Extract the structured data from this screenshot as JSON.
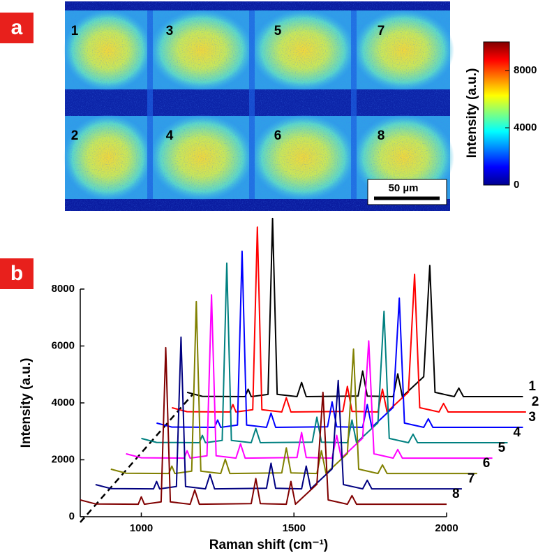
{
  "chart_data": [
    {
      "type": "heatmap",
      "panel_label": "a",
      "spot_labels": [
        "1",
        "2",
        "3",
        "4",
        "5",
        "6",
        "7",
        "8"
      ],
      "scale_bar": "50 µm",
      "colorbar_label": "Intensity (a.u.)",
      "colormap": "jet",
      "clim": [
        0,
        10000
      ],
      "cticks": [
        0,
        4000,
        8000
      ]
    },
    {
      "type": "line",
      "panel_label": "b",
      "x_label": "Raman shift (cm⁻¹)",
      "y_label": "Intensity (a.u.)",
      "xlim": [
        800,
        2000
      ],
      "xticks": [
        1000,
        1500,
        2000
      ],
      "ylim": [
        0,
        8000
      ],
      "yticks": [
        0,
        2000,
        4000,
        6000,
        8000
      ],
      "series": [
        {
          "name": "1",
          "color": "#000000",
          "x": [
            1150,
            1200,
            1340,
            1350,
            1360,
            1415,
            1430,
            1445,
            1510,
            1525,
            1540,
            1710,
            1725,
            1740,
            1825,
            1840,
            1855,
            1925,
            1945,
            1962,
            2025,
            2040,
            2055,
            2250
          ],
          "values": [
            4370,
            4230,
            4220,
            4480,
            4220,
            4300,
            10480,
            4300,
            4220,
            4720,
            4220,
            4240,
            5120,
            4240,
            4220,
            5020,
            4220,
            4920,
            8830,
            4370,
            4220,
            4520,
            4220,
            4220
          ]
        },
        {
          "name": "2",
          "color": "#ff0000",
          "x": [
            1100,
            1150,
            1290,
            1300,
            1310,
            1365,
            1380,
            1395,
            1460,
            1475,
            1490,
            1660,
            1675,
            1690,
            1775,
            1790,
            1805,
            1875,
            1895,
            1912,
            1975,
            1990,
            2005,
            2260
          ],
          "values": [
            3830,
            3690,
            3680,
            3940,
            3680,
            3760,
            10180,
            3760,
            3680,
            4180,
            3680,
            3700,
            4580,
            3700,
            3680,
            4480,
            3680,
            4380,
            8520,
            3830,
            3680,
            3980,
            3680,
            3680
          ]
        },
        {
          "name": "3",
          "color": "#0000ff",
          "x": [
            1050,
            1100,
            1240,
            1250,
            1260,
            1315,
            1330,
            1345,
            1410,
            1425,
            1440,
            1610,
            1625,
            1640,
            1725,
            1740,
            1755,
            1825,
            1845,
            1862,
            1925,
            1940,
            1955,
            2250
          ],
          "values": [
            3290,
            3150,
            3140,
            3400,
            3140,
            3220,
            9330,
            3220,
            3140,
            3640,
            3140,
            3160,
            4040,
            3160,
            3140,
            3940,
            3140,
            3840,
            7680,
            3290,
            3140,
            3440,
            3140,
            3140
          ]
        },
        {
          "name": "4",
          "color": "#008080",
          "x": [
            1000,
            1050,
            1190,
            1200,
            1210,
            1265,
            1280,
            1295,
            1360,
            1375,
            1390,
            1560,
            1575,
            1590,
            1675,
            1690,
            1705,
            1775,
            1795,
            1812,
            1875,
            1890,
            1905,
            2200
          ],
          "values": [
            2750,
            2610,
            2600,
            2860,
            2600,
            2680,
            8910,
            2680,
            2600,
            3100,
            2600,
            2620,
            3500,
            2620,
            2600,
            3400,
            2600,
            3300,
            7220,
            2750,
            2600,
            2900,
            2600,
            2600
          ]
        },
        {
          "name": "5",
          "color": "#ff00ff",
          "x": [
            950,
            1000,
            1140,
            1150,
            1160,
            1215,
            1230,
            1245,
            1310,
            1325,
            1340,
            1510,
            1525,
            1540,
            1625,
            1640,
            1655,
            1725,
            1745,
            1762,
            1825,
            1840,
            1855,
            2150
          ],
          "values": [
            2210,
            2070,
            2060,
            2320,
            2060,
            2140,
            7800,
            2140,
            2060,
            2560,
            2060,
            2080,
            2960,
            2080,
            2060,
            2860,
            2060,
            2760,
            6180,
            2210,
            2060,
            2360,
            2060,
            2060
          ]
        },
        {
          "name": "6",
          "color": "#808000",
          "x": [
            900,
            950,
            1090,
            1100,
            1110,
            1165,
            1180,
            1195,
            1260,
            1275,
            1290,
            1460,
            1475,
            1490,
            1575,
            1590,
            1605,
            1675,
            1695,
            1712,
            1775,
            1790,
            1805,
            2100
          ],
          "values": [
            1670,
            1530,
            1520,
            1780,
            1520,
            1600,
            7560,
            1600,
            1520,
            2020,
            1520,
            1540,
            2420,
            1540,
            1520,
            2320,
            1520,
            2220,
            5890,
            1670,
            1520,
            1820,
            1520,
            1520
          ]
        },
        {
          "name": "7",
          "color": "#000080",
          "x": [
            850,
            900,
            1040,
            1050,
            1060,
            1115,
            1130,
            1145,
            1210,
            1225,
            1240,
            1410,
            1425,
            1440,
            1525,
            1540,
            1555,
            1625,
            1645,
            1662,
            1725,
            1740,
            1755,
            2050
          ],
          "values": [
            1130,
            990,
            980,
            1240,
            980,
            1060,
            6310,
            1060,
            980,
            1480,
            980,
            1000,
            1880,
            1000,
            980,
            1780,
            980,
            1680,
            4790,
            1130,
            980,
            1280,
            980,
            980
          ]
        },
        {
          "name": "8",
          "color": "#800000",
          "x": [
            800,
            850,
            990,
            1000,
            1010,
            1065,
            1080,
            1095,
            1160,
            1175,
            1190,
            1360,
            1375,
            1390,
            1475,
            1490,
            1505,
            1575,
            1595,
            1612,
            1675,
            1690,
            1705,
            2000
          ],
          "values": [
            590,
            450,
            440,
            700,
            440,
            520,
            5940,
            520,
            440,
            940,
            440,
            460,
            1340,
            460,
            440,
            1240,
            440,
            1140,
            4370,
            590,
            440,
            740,
            440,
            440
          ]
        }
      ]
    }
  ]
}
